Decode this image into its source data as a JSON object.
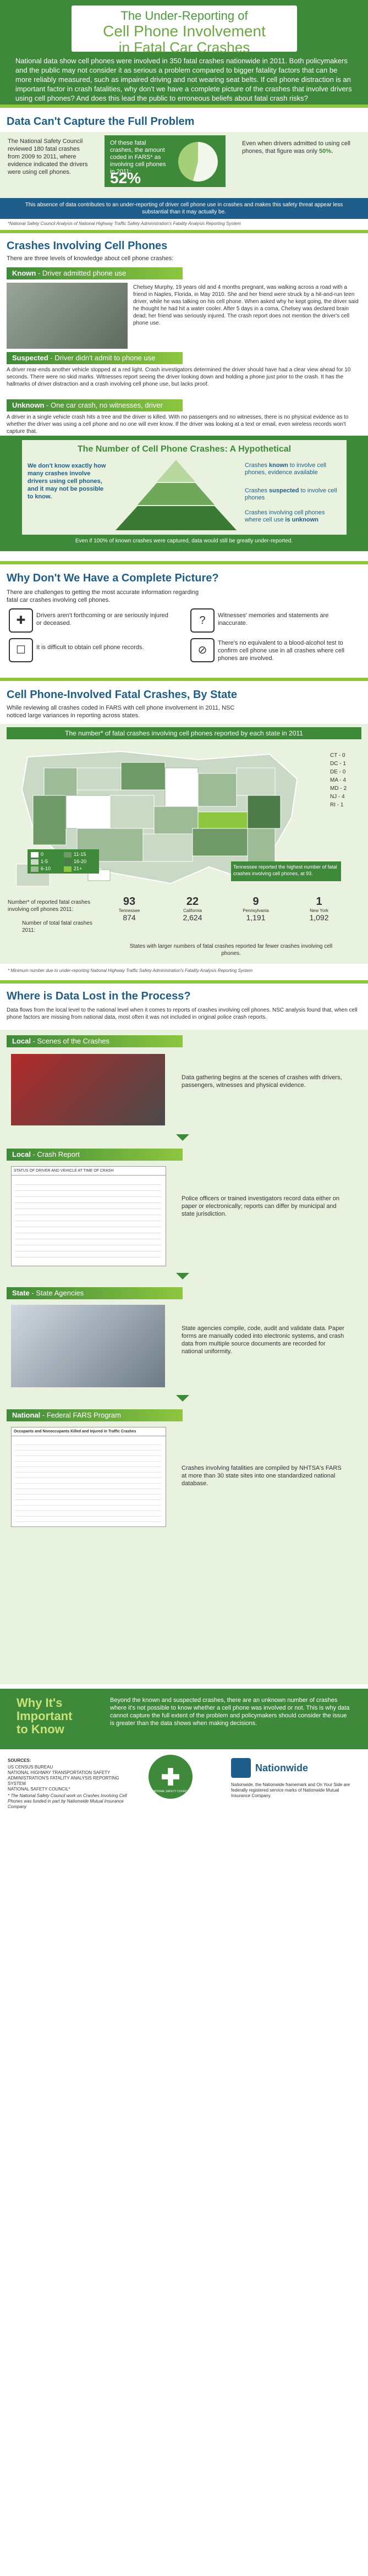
{
  "header": {
    "title_l1": "The Under-Reporting of",
    "title_l2": "Cell Phone Involvement",
    "title_l3": "in Fatal Car Crashes",
    "intro": "National data show cell phones were involved in 350 fatal crashes nationwide in 2011. Both policymakers and the public may not consider it as serious a problem compared to bigger fatality factors that can be more reliably measured, such as impaired driving and not wearing seat belts. If cell phone distraction is an important factor in crash fatalities, why don't we have a complete picture of the crashes that involve drivers using cell phones? And does this lead the public to erroneous beliefs about fatal crash risks?"
  },
  "section1": {
    "title": "Data Can't Capture the Full Problem",
    "left": "The National Safety Council reviewed 180 fatal crashes from 2009 to 2011, where evidence indicated the drivers were using cell phones.",
    "middle": "Of these fatal crashes, the amount coded in FARS* as involving cell phones in 2011:",
    "percent": "52%",
    "right_a": "Even when drivers admitted to using cell phones, that figure was only",
    "right_b": "50%.",
    "banner": "This absence of data contributes to an under-reporting of driver cell phone use in crashes and makes this safety threat appear less substantial than it may actually be.",
    "footnote": "*National Safety Council Analysis of National Highway Traffic Safety Administration's Fatality Analysis Reporting System"
  },
  "section2": {
    "title": "Crashes Involving Cell Phones",
    "subtitle": "There are three levels of knowledge about cell phone crashes:",
    "known": {
      "label_a": "Known",
      "label_b": " - Driver admitted phone use",
      "text": "Chelsey Murphy, 19 years old and 4 months pregnant, was walking across a road with a friend in Naples, Florida, in May 2010. She and her friend were struck by a hit-and-run teen driver, while he was talking on his cell phone. When asked why he kept going, the driver said he thought he had hit a water cooler. After 5 days in a coma, Chelsey was declared brain dead; her friend was seriously injured. The crash report does not mention the driver's cell phone use."
    },
    "suspected": {
      "label_a": "Suspected",
      "label_b": " - Driver didn't admit to phone use",
      "text": "A driver rear-ends another vehicle stopped at a red light. Crash investigators determined the driver should have had a clear view ahead for 10 seconds. There were no skid marks. Witnesses report seeing the driver looking down and holding a phone just prior to the crash. It has the hallmarks of driver distraction and a crash involving cell phone use, but lacks proof."
    },
    "unknown": {
      "label_a": "Unknown",
      "label_b": " - One car crash, no witnesses, driver deceased",
      "text": "A driver in a single vehicle crash hits a tree and the driver is killed. With no passengers and no witnesses, there is no physical evidence as to whether the driver was using a cell phone and no one will ever know. If the driver was looking at a text or email, even wireless records won't capture that."
    }
  },
  "pyramid": {
    "title": "The Number of Cell Phone Crashes: A Hypothetical",
    "left": "We don't know exactly how many crashes involve drivers using cell phones, and it may not be possible to know.",
    "known_a": "Crashes ",
    "known_b": "known",
    "known_c": " to involve cell phones, evidence available",
    "susp_a": "Crashes ",
    "susp_b": "suspected",
    "susp_c": " to involve cell phones",
    "unk_a": "Crashes involving cell phones where cell use ",
    "unk_b": "is unknown",
    "footer": "Even if 100% of known crashes were captured, data would still be greatly under-reported."
  },
  "section3": {
    "title": "Why Don't We Have a Complete Picture?",
    "subtitle": "There are challenges to getting the most accurate information regarding fatal car crashes involving cell phones.",
    "c1": "Drivers aren't forthcoming or are seriously injured or deceased.",
    "c2": "Witnesses' memories and statements are inaccurate.",
    "c3": "It is difficult to obtain cell phone records.",
    "c4": "There's no equivalent to a blood-alcohol test to confirm cell phone use in all crashes where cell phones are involved."
  },
  "section4": {
    "title": "Cell Phone-Involved Fatal Crashes, By State",
    "subtitle": "While reviewing all crashes coded in FARS with cell phone involvement in 2011, NSC noticed large variances in reporting across states.",
    "map_title": "The number* of fatal crashes involving cell phones reported by each state in 2011",
    "legend": [
      {
        "label": "0",
        "color": "#ffffff"
      },
      {
        "label": "1-5",
        "color": "#c9d9c5"
      },
      {
        "label": "6-10",
        "color": "#9dbb97"
      },
      {
        "label": "11-15",
        "color": "#6f9a68"
      },
      {
        "label": "16-20",
        "color": "#4e7c48"
      },
      {
        "label": "21+",
        "color": "#8dc63f"
      }
    ],
    "small_states": [
      "CT - 0",
      "DC - 1",
      "DE - 0",
      "MA - 4",
      "MD - 2",
      "NJ - 4",
      "RI - 1"
    ],
    "tn_callout": "Tennessee reported the highest number of fatal crashes involving cell phones, at 93.",
    "row1_label": "Number* of reported fatal crashes involving cell phones 2011:",
    "row2_label": "Number of total fatal crashes 2011:",
    "states": [
      {
        "name": "Tennessee",
        "cell": "93",
        "total": "874"
      },
      {
        "name": "California",
        "cell": "22",
        "total": "2,624"
      },
      {
        "name": "Pennsylvania",
        "cell": "9",
        "total": "1,191"
      },
      {
        "name": "New York",
        "cell": "1",
        "total": "1,092"
      }
    ],
    "states_note": "States with larger numbers of fatal crashes reported far fewer crashes involving cell phones.",
    "footnote": "* Minimum number due to under-reporting    National Highway Traffic Safety Administration's Fatality Analysis Reporting System"
  },
  "section5": {
    "title": "Where is Data Lost in the Process?",
    "subtitle": "Data flows from the local level to the national level when it comes to reports of crashes involving cell phones. NSC analysis found that, when cell phone factors are missing from national data, most often it was not included in original police crash reports.",
    "local_scenes_a": "Local",
    "local_scenes_b": " - Scenes of the Crashes",
    "local_scenes_text": "Data gathering begins at the scenes of crashes with drivers, passengers, witnesses and physical evidence.",
    "local_report_a": "Local",
    "local_report_b": " - Crash Report",
    "local_report_text": "Police officers or trained investigators record data either on paper or electronically; reports can differ by municipal and state jurisdiction.",
    "state_a": "State",
    "state_b": " - State Agencies",
    "state_text": "State agencies compile, code, audit and validate data. Paper forms are manually coded into electronic systems, and crash data from multiple source documents are recorded for national uniformity.",
    "federal_a": "National",
    "federal_b": " - Federal FARS Program",
    "federal_text": "Crashes involving fatalities are compiled by NHTSA's FARS at more than 30 state sites into one standardized national database.",
    "form_header": "STATUS OF DRIVER AND VEHICLE AT TIME OF CRASH",
    "table_title": "Occupants and Nonoccupants Killed and Injured in Traffic Crashes"
  },
  "footer": {
    "why_a": "Why It's",
    "why_b": "Important",
    "why_c": "to Know",
    "text": "Beyond the known and suspected crashes, there are an unknown number of crashes where it's not possible to know whether a cell phone was involved or not. This is why data cannot capture the full extent of the problem and policymakers should consider the issue is greater than the data shows when making decisions.",
    "sources_title": "SOURCES:",
    "sources": "US CENSUS BUREAU\nNATIONAL HIGHWAY TRANSPORTATION SAFETY ADMINISTRATION'S FATALITY ANALYSIS REPORTING SYSTEM\nNATIONAL SAFETY COUNCIL*",
    "sources_note": "* The National Safety Council work on Crashes Involving Cell Phones was funded in part by Nationwide Mutual Insurance Company",
    "nsc_logo": "NATIONAL SAFETY COUNCIL",
    "nationwide_logo": "Nationwide",
    "nationwide_note": "Nationwide, the Nationwide framemark and On Your Side are federally registered service marks of Nationwide Mutual Insurance Company."
  }
}
